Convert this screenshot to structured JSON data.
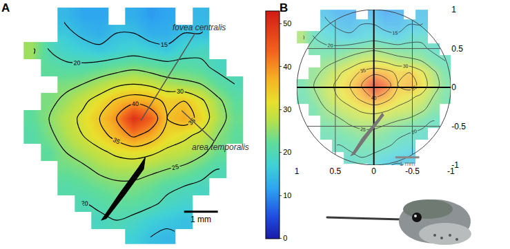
{
  "chart_data": [
    {
      "type": "contour",
      "title": "A",
      "x": [
        0,
        0.5,
        1,
        1.5,
        2,
        2.5,
        3,
        3.5,
        4,
        4.5,
        5,
        5.5,
        6
      ],
      "y": [
        0,
        0.5,
        1,
        1.5,
        2,
        2.5,
        3,
        3.5,
        4,
        4.5,
        5,
        5.5,
        6,
        6.5
      ],
      "z": [
        [
          null,
          null,
          null,
          null,
          null,
          null,
          17,
          15,
          14,
          null,
          null,
          null,
          null
        ],
        [
          null,
          null,
          null,
          null,
          19,
          20,
          19,
          17,
          16,
          15,
          null,
          null,
          null
        ],
        [
          null,
          null,
          null,
          20,
          21,
          22,
          22,
          21,
          19,
          18,
          null,
          null,
          null
        ],
        [
          null,
          null,
          21,
          22,
          23,
          24,
          24,
          23,
          21,
          20,
          19,
          null,
          null
        ],
        [
          null,
          null,
          23,
          24,
          26,
          27,
          27,
          26,
          25,
          24,
          22,
          20,
          null
        ],
        [
          null,
          22,
          25,
          27,
          29,
          31,
          32,
          31,
          29,
          28,
          26,
          23,
          null
        ],
        [
          21,
          24,
          27,
          30,
          33,
          37,
          41,
          38,
          33,
          31,
          29,
          25,
          22
        ],
        [
          22,
          25,
          28,
          31,
          35,
          40,
          50,
          44,
          35,
          38,
          33,
          27,
          23
        ],
        [
          null,
          24,
          26,
          29,
          32,
          36,
          38,
          37,
          34,
          35,
          31,
          26,
          22
        ],
        [
          null,
          null,
          24,
          25,
          27,
          29,
          30,
          29,
          27,
          26,
          25,
          22,
          20
        ],
        [
          null,
          22,
          21,
          21,
          22,
          23,
          24,
          23,
          22,
          22,
          21,
          19,
          null
        ],
        [
          26,
          20,
          18,
          17,
          16,
          17,
          18,
          17,
          16,
          18,
          19,
          null,
          null
        ],
        [
          null,
          null,
          16,
          14,
          13,
          15,
          15,
          13,
          13,
          15,
          15,
          null,
          null
        ],
        [
          null,
          null,
          14,
          12,
          12,
          null,
          13,
          11,
          12,
          null,
          14,
          null,
          null
        ]
      ],
      "contour_levels": [
        15,
        20,
        25,
        30,
        35,
        40
      ],
      "colorbar": {
        "range": [
          0,
          53
        ],
        "ticks": [
          0,
          10,
          20,
          30,
          40,
          50
        ]
      },
      "annotations": [
        {
          "text": "fovea centralis",
          "x": 3.2,
          "y": 3.4
        },
        {
          "text": "area temporalis",
          "x": 4.4,
          "y": 3.75
        }
      ],
      "scale_bar": {
        "label": "1 mm",
        "length": 1
      },
      "xlim": [
        -0.8,
        6.6
      ],
      "ylim": [
        -0.2,
        6.9
      ],
      "tick_labels": false
    },
    {
      "type": "contour",
      "title": "B",
      "x": [
        0.93,
        0.78,
        0.62,
        0.47,
        0.31,
        0.16,
        0.0,
        -0.15,
        -0.31,
        -0.46,
        -0.62,
        -0.77,
        -0.93
      ],
      "y": [
        -1.05,
        -0.9,
        -0.74,
        -0.59,
        -0.43,
        -0.28,
        -0.12,
        0.03,
        0.19,
        0.34,
        0.5,
        0.65,
        0.81,
        0.96
      ],
      "z": [
        [
          null,
          null,
          null,
          null,
          null,
          null,
          17,
          15,
          14,
          null,
          null,
          null,
          null
        ],
        [
          null,
          null,
          null,
          null,
          19,
          20,
          19,
          17,
          16,
          15,
          null,
          null,
          null
        ],
        [
          null,
          null,
          null,
          20,
          21,
          22,
          22,
          21,
          19,
          18,
          null,
          null,
          null
        ],
        [
          null,
          null,
          21,
          22,
          23,
          24,
          24,
          23,
          21,
          20,
          19,
          null,
          null
        ],
        [
          null,
          null,
          23,
          24,
          26,
          27,
          27,
          26,
          25,
          24,
          22,
          20,
          null
        ],
        [
          null,
          22,
          25,
          27,
          29,
          31,
          32,
          31,
          29,
          28,
          26,
          23,
          null
        ],
        [
          21,
          24,
          27,
          30,
          33,
          37,
          41,
          38,
          33,
          31,
          29,
          25,
          22
        ],
        [
          22,
          25,
          28,
          31,
          35,
          40,
          50,
          44,
          35,
          38,
          33,
          27,
          23
        ],
        [
          null,
          24,
          26,
          29,
          32,
          36,
          38,
          37,
          34,
          35,
          31,
          26,
          22
        ],
        [
          null,
          null,
          24,
          25,
          27,
          29,
          30,
          29,
          27,
          26,
          25,
          22,
          20
        ],
        [
          null,
          22,
          21,
          21,
          22,
          23,
          24,
          23,
          22,
          22,
          21,
          19,
          null
        ],
        [
          26,
          20,
          18,
          17,
          16,
          17,
          18,
          17,
          16,
          18,
          19,
          null,
          null
        ],
        [
          null,
          null,
          16,
          14,
          13,
          15,
          15,
          13,
          13,
          15,
          15,
          null,
          null
        ],
        [
          null,
          null,
          14,
          12,
          12,
          null,
          13,
          11,
          12,
          null,
          14,
          null,
          null
        ]
      ],
      "contour_levels": [
        15,
        20,
        25,
        30,
        35,
        40
      ],
      "zlim": [
        0,
        53
      ],
      "scale_bar": {
        "label": "1 mm",
        "length": 0.31
      },
      "xlim": [
        1,
        -1
      ],
      "ylim": [
        -1,
        1
      ],
      "xticks": [
        1,
        0.5,
        0,
        -0.5,
        -1
      ],
      "yticks": [
        1,
        0.5,
        0,
        -0.5,
        -1
      ],
      "grid": true
    }
  ]
}
